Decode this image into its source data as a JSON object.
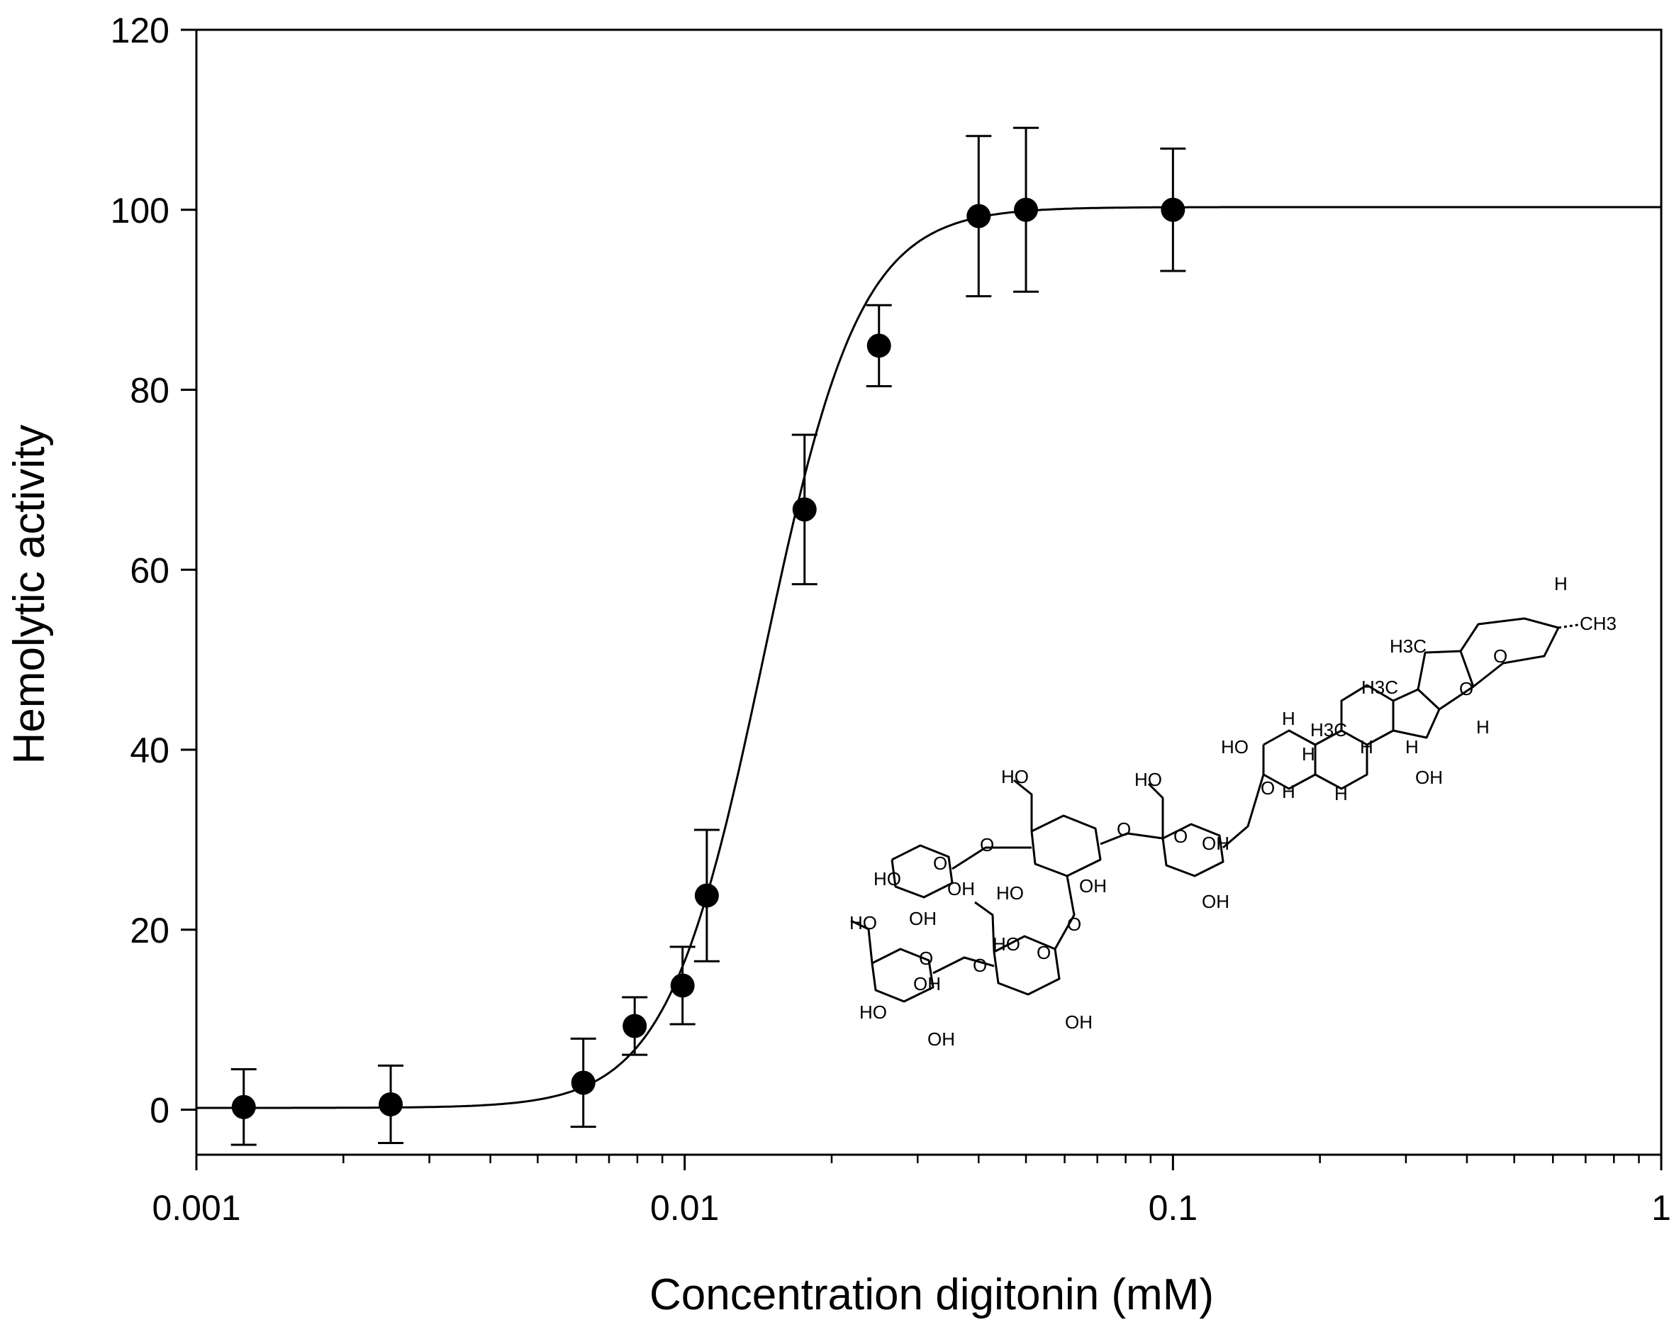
{
  "chart_data": {
    "type": "scatter",
    "xlabel": "Concentration digitonin (mM)",
    "ylabel": "Hemolytic activity",
    "x_scale": "log",
    "xlim": [
      0.001,
      1
    ],
    "ylim": [
      -5,
      120
    ],
    "x_ticks": [
      {
        "value": 0.001,
        "label": "0.001"
      },
      {
        "value": 0.01,
        "label": "0.01"
      },
      {
        "value": 0.1,
        "label": "0.1"
      },
      {
        "value": 1,
        "label": "1"
      }
    ],
    "y_ticks": [
      {
        "value": 0,
        "label": "0"
      },
      {
        "value": 20,
        "label": "20"
      },
      {
        "value": 40,
        "label": "40"
      },
      {
        "value": 60,
        "label": "60"
      },
      {
        "value": 80,
        "label": "80"
      },
      {
        "value": 100,
        "label": "100"
      },
      {
        "value": 120,
        "label": "120"
      }
    ],
    "grid": false,
    "points": [
      {
        "x": 0.00125,
        "y": 0.3,
        "err": 4.2
      },
      {
        "x": 0.0025,
        "y": 0.6,
        "err": 4.3
      },
      {
        "x": 0.0062,
        "y": 3.0,
        "err": 4.9
      },
      {
        "x": 0.0079,
        "y": 9.3,
        "err": 3.2
      },
      {
        "x": 0.0099,
        "y": 13.8,
        "err": 4.3
      },
      {
        "x": 0.0111,
        "y": 23.8,
        "err": 7.3
      },
      {
        "x": 0.0176,
        "y": 66.7,
        "err": 8.3
      },
      {
        "x": 0.025,
        "y": 84.9,
        "err": 4.5
      },
      {
        "x": 0.04,
        "y": 99.3,
        "err": 8.9
      },
      {
        "x": 0.05,
        "y": 100.0,
        "err": 9.1
      },
      {
        "x": 0.1,
        "y": 100.0,
        "err": 6.8
      }
    ],
    "fit_curve": {
      "bottom": 0.2,
      "top": 100.3,
      "ec50": 0.0145,
      "hill": 4.4
    }
  },
  "molecule": {
    "name": "digitonin structure",
    "labels": [
      "H",
      "CH3",
      "H3C",
      "O",
      "H3C",
      "O",
      "H",
      "H3C",
      "H",
      "H",
      "H",
      "OH",
      "HO",
      "H",
      "H",
      "H",
      "O",
      "HO",
      "HO",
      "O",
      "O",
      "O",
      "OH",
      "OH",
      "HO",
      "O",
      "O",
      "HO",
      "OH",
      "OH",
      "OH",
      "HO",
      "O",
      "O",
      "HO",
      "O",
      "OH",
      "HO",
      "OH",
      "OH"
    ]
  }
}
